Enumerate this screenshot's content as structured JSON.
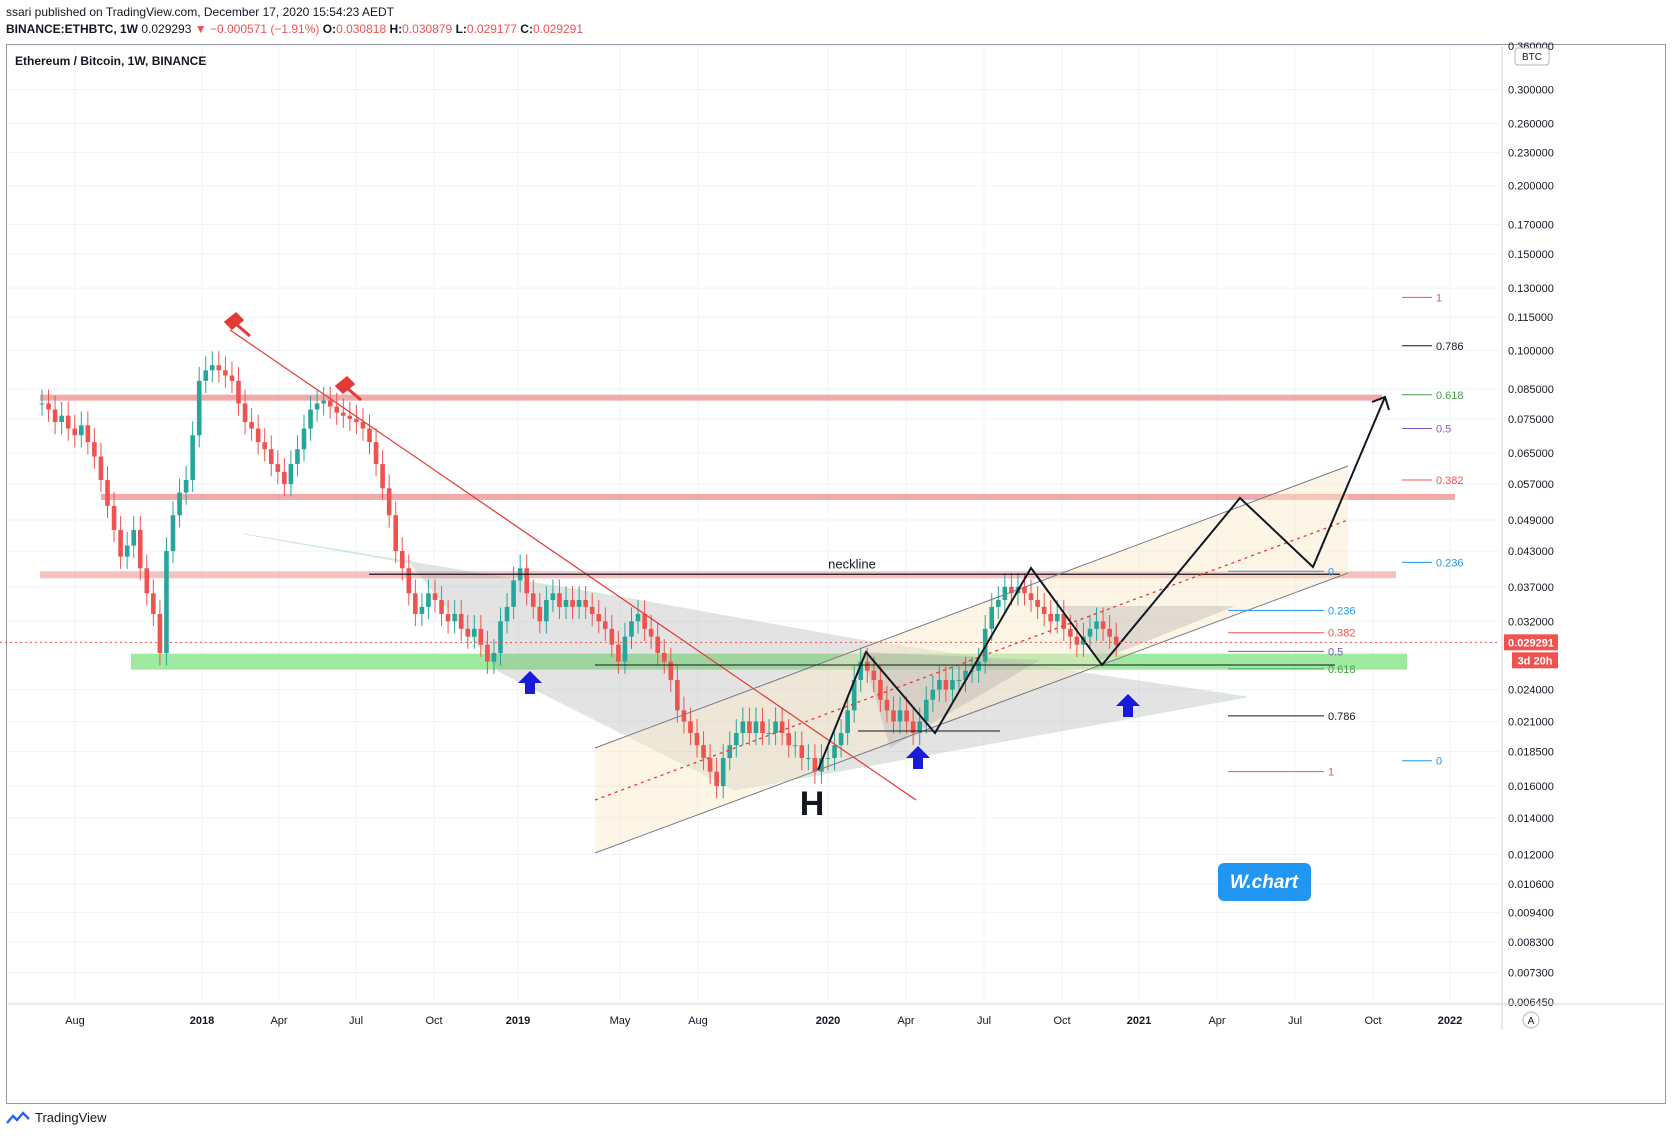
{
  "header": {
    "published": "ssari published on TradingView.com, December 17, 2020 15:54:23 AEDT",
    "symbol_line": "BINANCE:ETHBTC, 1W",
    "price": "0.029293",
    "change": "▼ −0.000571 (−1.91%)",
    "o_label": "O:",
    "o_val": "0.030818",
    "h_label": "H:",
    "h_val": "0.030879",
    "l_label": "L:",
    "l_val": "0.029177",
    "c_label": "C:",
    "c_val": "0.029291"
  },
  "chart_title": "Ethereum / Bitcoin, 1W, BINANCE",
  "footer": {
    "brand": "TradingView"
  },
  "chart_data": {
    "type": "candlestick",
    "title": "Ethereum / Bitcoin, 1W, BINANCE",
    "y_unit": "BTC",
    "y_scale": "log",
    "ylim": [
      0.00645,
      0.36
    ],
    "y_ticks": [
      "0.360000",
      "0.300000",
      "0.260000",
      "0.230000",
      "0.200000",
      "0.170000",
      "0.150000",
      "0.130000",
      "0.115000",
      "0.100000",
      "0.085000",
      "0.075000",
      "0.065000",
      "0.057000",
      "0.049000",
      "0.043000",
      "0.037000",
      "0.032000",
      "0.024000",
      "0.021000",
      "0.018500",
      "0.016000",
      "0.014000",
      "0.012000",
      "0.010600",
      "0.009400",
      "0.008300",
      "0.007300",
      "0.006450"
    ],
    "x_ticks": [
      "Aug",
      "2018",
      "Apr",
      "Jul",
      "Oct",
      "2019",
      "May",
      "Aug",
      "2020",
      "Apr",
      "Jul",
      "Oct",
      "2021",
      "Apr",
      "Jul",
      "Oct",
      "2022"
    ],
    "last_price": "0.029291",
    "countdown": "3d 20h",
    "colors": {
      "up": "#26a69a",
      "down": "#ef5350",
      "resistance": "#ef9a9a",
      "support": "#8ee68e",
      "arrow": "#1a1adb"
    },
    "closes": [
      0.08,
      0.078,
      0.074,
      0.076,
      0.072,
      0.07,
      0.073,
      0.068,
      0.064,
      0.058,
      0.052,
      0.047,
      0.042,
      0.044,
      0.047,
      0.04,
      0.036,
      0.033,
      0.028,
      0.043,
      0.05,
      0.055,
      0.058,
      0.07,
      0.088,
      0.092,
      0.094,
      0.092,
      0.09,
      0.088,
      0.08,
      0.074,
      0.072,
      0.068,
      0.066,
      0.062,
      0.06,
      0.057,
      0.062,
      0.066,
      0.072,
      0.078,
      0.08,
      0.081,
      0.079,
      0.077,
      0.076,
      0.075,
      0.074,
      0.072,
      0.068,
      0.062,
      0.056,
      0.05,
      0.043,
      0.04,
      0.036,
      0.033,
      0.034,
      0.036,
      0.035,
      0.033,
      0.032,
      0.033,
      0.031,
      0.03,
      0.031,
      0.029,
      0.027,
      0.028,
      0.032,
      0.034,
      0.038,
      0.04,
      0.036,
      0.034,
      0.032,
      0.035,
      0.036,
      0.034,
      0.035,
      0.034,
      0.035,
      0.034,
      0.033,
      0.032,
      0.031,
      0.029,
      0.027,
      0.03,
      0.032,
      0.033,
      0.031,
      0.03,
      0.028,
      0.027,
      0.025,
      0.022,
      0.021,
      0.02,
      0.019,
      0.018,
      0.017,
      0.016,
      0.018,
      0.019,
      0.02,
      0.021,
      0.02,
      0.021,
      0.02,
      0.02,
      0.021,
      0.02,
      0.019,
      0.019,
      0.018,
      0.018,
      0.017,
      0.018,
      0.018,
      0.019,
      0.02,
      0.022,
      0.025,
      0.027,
      0.026,
      0.025,
      0.023,
      0.022,
      0.021,
      0.022,
      0.021,
      0.02,
      0.021,
      0.023,
      0.024,
      0.025,
      0.024,
      0.025,
      0.025,
      0.026,
      0.026,
      0.027,
      0.031,
      0.034,
      0.035,
      0.037,
      0.036,
      0.037,
      0.036,
      0.035,
      0.034,
      0.033,
      0.032,
      0.033,
      0.031,
      0.03,
      0.029,
      0.03,
      0.031,
      0.032,
      0.031,
      0.03,
      0.029
    ],
    "levels": [
      {
        "label": "neckline",
        "value": 0.039
      },
      {
        "label": "resistance",
        "value": 0.082
      },
      {
        "label": "resistance",
        "value": 0.054
      },
      {
        "label": "support",
        "value": 0.027
      }
    ],
    "fib_left": [
      {
        "label": "1",
        "value": 0.125,
        "color": "#ef5350"
      },
      {
        "label": "0.786",
        "value": 0.102,
        "color": "#131722"
      },
      {
        "label": "0.618",
        "value": 0.083,
        "color": "#43a047"
      },
      {
        "label": "0.5",
        "value": 0.072,
        "color": "#7e57c2"
      },
      {
        "label": "0.382",
        "value": 0.058,
        "color": "#ef5350"
      },
      {
        "label": "0.236",
        "value": 0.041,
        "color": "#2196f3"
      },
      {
        "label": "0",
        "value": 0.0178,
        "color": "#2196f3"
      }
    ],
    "fib_right": [
      {
        "label": "0",
        "value": 0.0395,
        "color": "#2196f3"
      },
      {
        "label": "0.236",
        "value": 0.0335,
        "color": "#2196f3"
      },
      {
        "label": "0.382",
        "value": 0.0305,
        "color": "#ef5350"
      },
      {
        "label": "0.5",
        "value": 0.0282,
        "color": "#7e57c2"
      },
      {
        "label": "0.618",
        "value": 0.0262,
        "color": "#43a047"
      },
      {
        "label": "0.786",
        "value": 0.0215,
        "color": "#131722"
      },
      {
        "label": "1",
        "value": 0.017,
        "color": "#ef5350"
      }
    ],
    "annotations": [
      "neckline",
      "H",
      "W.chart"
    ]
  }
}
